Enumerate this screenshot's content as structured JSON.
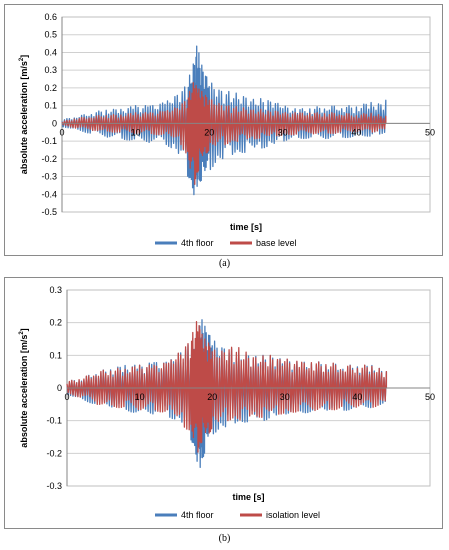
{
  "chart_data": [
    {
      "type": "line",
      "panel": "(a)",
      "xlabel": "time [s]",
      "ylabel": "absolute acceleration [m/s",
      "ylabel_sup": "2",
      "ylabel_end": "]",
      "xlim": [
        0,
        50
      ],
      "ylim": [
        -0.5,
        0.6
      ],
      "xticks": [
        0,
        10,
        20,
        30,
        40,
        50
      ],
      "yticks": [
        -0.5,
        -0.4,
        -0.3,
        -0.2,
        -0.1,
        0,
        0.1,
        0.2,
        0.3,
        0.4,
        0.5,
        0.6
      ],
      "grid": true,
      "legend_position": "bottom",
      "series": [
        {
          "name": "4th floor",
          "color": "#4a7ebb",
          "x": [
            0,
            2,
            4,
            6,
            8,
            10,
            12,
            14,
            15,
            16,
            17,
            17.5,
            18,
            18.3,
            18.6,
            19,
            19.5,
            20,
            21,
            22,
            23,
            24,
            25,
            26,
            27,
            28,
            29,
            30,
            32,
            34,
            36,
            38,
            40,
            42,
            43,
            44
          ],
          "y": [
            0.02,
            0.04,
            0.06,
            0.08,
            0.08,
            0.1,
            0.1,
            0.12,
            0.14,
            0.18,
            0.22,
            0.3,
            0.38,
            0.46,
            0.4,
            0.33,
            0.28,
            0.24,
            0.2,
            0.18,
            0.18,
            0.17,
            0.16,
            0.14,
            0.14,
            0.13,
            0.12,
            0.1,
            0.08,
            0.09,
            0.1,
            0.1,
            0.1,
            0.12,
            0.11,
            0.13
          ],
          "y_min": [
            -0.02,
            -0.04,
            -0.06,
            -0.08,
            -0.09,
            -0.1,
            -0.11,
            -0.12,
            -0.15,
            -0.2,
            -0.3,
            -0.36,
            -0.43,
            -0.38,
            -0.33,
            -0.32,
            -0.3,
            -0.26,
            -0.22,
            -0.2,
            -0.18,
            -0.17,
            -0.16,
            -0.15,
            -0.14,
            -0.13,
            -0.12,
            -0.1,
            -0.09,
            -0.08,
            -0.09,
            -0.08,
            -0.08,
            -0.07,
            -0.06,
            -0.05
          ]
        },
        {
          "name": "base level",
          "color": "#be4b48",
          "x": [
            0,
            2,
            4,
            6,
            8,
            10,
            12,
            14,
            15,
            16,
            17,
            17.5,
            18,
            18.3,
            18.6,
            19,
            19.5,
            20,
            21,
            22,
            23,
            24,
            25,
            26,
            27,
            28,
            29,
            30,
            32,
            34,
            36,
            38,
            40,
            42,
            43,
            44
          ],
          "y": [
            0.01,
            0.03,
            0.04,
            0.05,
            0.05,
            0.06,
            0.06,
            0.07,
            0.08,
            0.1,
            0.14,
            0.2,
            0.25,
            0.22,
            0.2,
            0.18,
            0.16,
            0.14,
            0.12,
            0.1,
            0.1,
            0.09,
            0.09,
            0.08,
            0.08,
            0.07,
            0.07,
            0.06,
            0.06,
            0.06,
            0.06,
            0.06,
            0.05,
            0.06,
            0.05,
            0.04
          ],
          "y_min": [
            -0.01,
            -0.03,
            -0.04,
            -0.05,
            -0.05,
            -0.06,
            -0.06,
            -0.07,
            -0.09,
            -0.12,
            -0.2,
            -0.3,
            -0.35,
            -0.3,
            -0.25,
            -0.2,
            -0.17,
            -0.15,
            -0.13,
            -0.12,
            -0.11,
            -0.1,
            -0.09,
            -0.09,
            -0.08,
            -0.08,
            -0.07,
            -0.07,
            -0.06,
            -0.06,
            -0.06,
            -0.05,
            -0.05,
            -0.05,
            -0.04,
            -0.03
          ]
        }
      ]
    },
    {
      "type": "line",
      "panel": "(b)",
      "xlabel": "time [s]",
      "ylabel": "absolute acceleration [m/s",
      "ylabel_sup": "2",
      "ylabel_end": "]",
      "xlim": [
        0,
        50
      ],
      "ylim": [
        -0.3,
        0.3
      ],
      "xticks": [
        0,
        10,
        20,
        30,
        40,
        50
      ],
      "yticks": [
        -0.3,
        -0.2,
        -0.1,
        0,
        0.1,
        0.2,
        0.3
      ],
      "grid": true,
      "legend_position": "bottom",
      "series": [
        {
          "name": "4th floor",
          "color": "#4a7ebb",
          "x": [
            0,
            2,
            4,
            6,
            8,
            10,
            12,
            14,
            15,
            16,
            17,
            17.5,
            18,
            18.3,
            18.6,
            19,
            19.5,
            20,
            21,
            22,
            23,
            24,
            25,
            26,
            27,
            28,
            29,
            30,
            32,
            34,
            36,
            38,
            40,
            42,
            43,
            44
          ],
          "y": [
            0.02,
            0.03,
            0.05,
            0.06,
            0.07,
            0.07,
            0.08,
            0.08,
            0.1,
            0.12,
            0.14,
            0.16,
            0.18,
            0.2,
            0.21,
            0.19,
            0.17,
            0.15,
            0.13,
            0.12,
            0.12,
            0.11,
            0.11,
            0.1,
            0.1,
            0.1,
            0.09,
            0.09,
            0.08,
            0.08,
            0.08,
            0.07,
            0.07,
            0.07,
            0.06,
            0.05
          ],
          "y_min": [
            -0.02,
            -0.04,
            -0.05,
            -0.06,
            -0.07,
            -0.08,
            -0.08,
            -0.09,
            -0.1,
            -0.12,
            -0.16,
            -0.2,
            -0.24,
            -0.26,
            -0.22,
            -0.19,
            -0.16,
            -0.14,
            -0.13,
            -0.12,
            -0.11,
            -0.11,
            -0.1,
            -0.1,
            -0.1,
            -0.09,
            -0.09,
            -0.08,
            -0.08,
            -0.07,
            -0.07,
            -0.07,
            -0.06,
            -0.06,
            -0.05,
            -0.04
          ]
        },
        {
          "name": "isolation level",
          "color": "#be4b48",
          "x": [
            0,
            2,
            4,
            6,
            8,
            10,
            12,
            14,
            15,
            16,
            17,
            17.5,
            18,
            18.3,
            18.6,
            19,
            19.5,
            20,
            21,
            22,
            23,
            24,
            25,
            26,
            27,
            28,
            29,
            30,
            32,
            34,
            36,
            38,
            40,
            42,
            43,
            44
          ],
          "y": [
            0.02,
            0.03,
            0.05,
            0.06,
            0.06,
            0.07,
            0.07,
            0.08,
            0.1,
            0.12,
            0.15,
            0.18,
            0.22,
            0.2,
            0.17,
            0.15,
            0.14,
            0.12,
            0.11,
            0.12,
            0.13,
            0.12,
            0.11,
            0.1,
            0.1,
            0.1,
            0.09,
            0.09,
            0.08,
            0.08,
            0.08,
            0.07,
            0.07,
            0.07,
            0.06,
            0.05
          ],
          "y_min": [
            -0.02,
            -0.03,
            -0.05,
            -0.06,
            -0.06,
            -0.07,
            -0.07,
            -0.08,
            -0.1,
            -0.12,
            -0.14,
            -0.17,
            -0.2,
            -0.18,
            -0.16,
            -0.15,
            -0.14,
            -0.12,
            -0.11,
            -0.1,
            -0.1,
            -0.1,
            -0.09,
            -0.09,
            -0.09,
            -0.08,
            -0.08,
            -0.08,
            -0.07,
            -0.07,
            -0.07,
            -0.06,
            -0.06,
            -0.06,
            -0.05,
            -0.04
          ]
        }
      ]
    }
  ]
}
